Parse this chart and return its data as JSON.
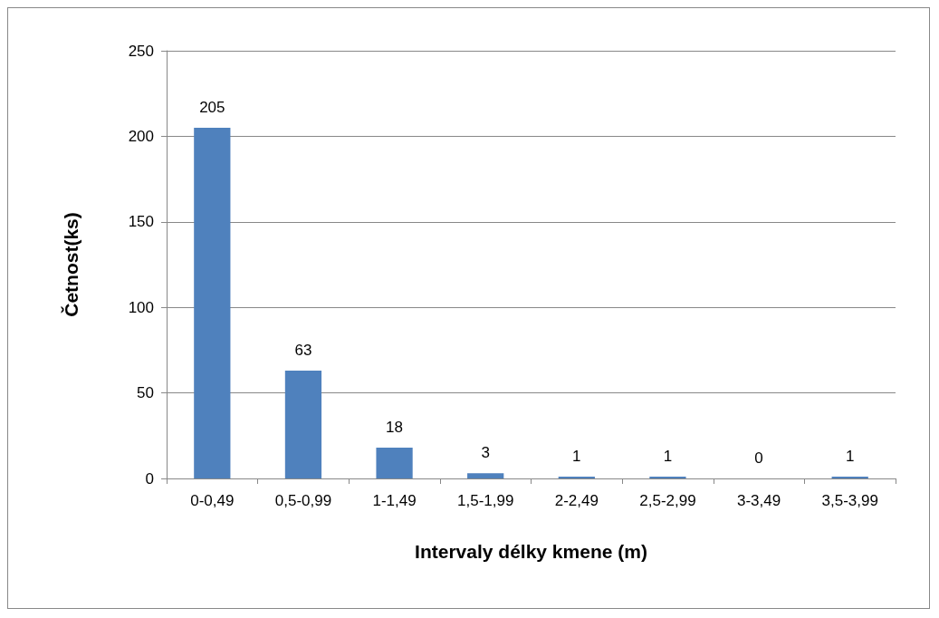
{
  "chart_data": {
    "type": "bar",
    "xlabel": "Intervaly délky kmene (m)",
    "ylabel": "Četnost(ks)",
    "categories": [
      "0-0,49",
      "0,5-0,99",
      "1-1,49",
      "1,5-1,99",
      "2-2,49",
      "2,5-2,99",
      "3-3,49",
      "3,5-3,99"
    ],
    "values": [
      205,
      63,
      18,
      3,
      1,
      1,
      0,
      1
    ],
    "color": "#4f81bd",
    "ylim": [
      0,
      250
    ],
    "yticks": [
      0,
      50,
      100,
      150,
      200,
      250
    ],
    "grid": "y",
    "data_labels": true
  }
}
